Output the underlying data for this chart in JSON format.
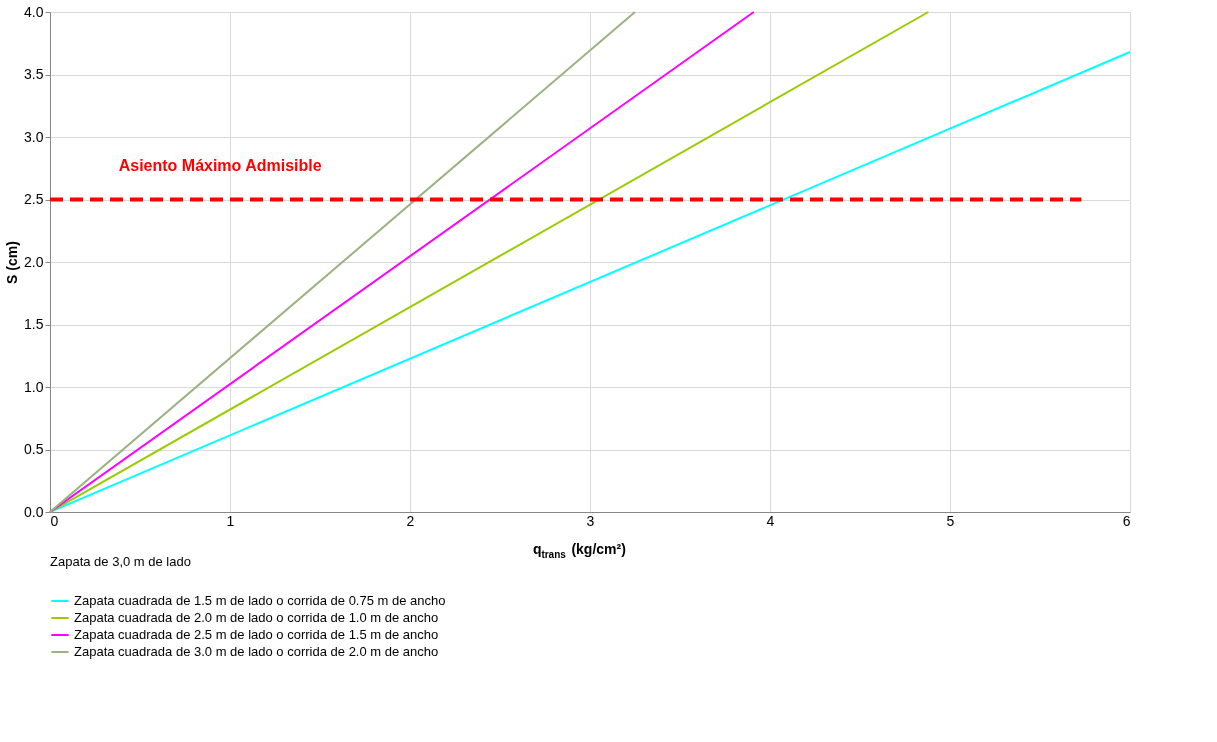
{
  "chart_data": {
    "type": "line",
    "xlabel": "q$_{trans}$ (kg/cm²)",
    "ylabel": "S (cm)",
    "legend_title": "Zapata de 3,0 m de lado",
    "xlim": [
      0,
      6
    ],
    "xticks": [
      0,
      1,
      2,
      3,
      4,
      5,
      6
    ],
    "ylim": [
      0,
      4.0
    ],
    "yticks": [
      {
        "value": 0,
        "label": "0.0"
      },
      0.5,
      {
        "value": 1,
        "label": "1.0"
      },
      1.5,
      {
        "value": 2,
        "label": "2.0"
      },
      2.5,
      {
        "value": 3,
        "label": "3.0"
      },
      3.5,
      {
        "value": 4,
        "label": "4.0"
      }
    ],
    "grid": true,
    "legend": "bottom",
    "marker": "none",
    "line_style": "solid",
    "series": [
      {
        "name": "Zapata cuadrada de 1.5 m de lado o corrida de 0.75 m de ancho",
        "color": "#00ffff",
        "x": [
          0,
          6
        ],
        "values": [
          0,
          3.68
        ]
      },
      {
        "name": "Zapata cuadrada de 2.0 m de lado o corrida de 1.0 m de ancho",
        "color": "#99cc00",
        "x": [
          0,
          4.88
        ],
        "values": [
          0,
          4.0
        ]
      },
      {
        "name": "Zapata cuadrada de 2.5 m de lado o corrida de 1.5 m de ancho",
        "color": "#ff00ff",
        "x": [
          0,
          3.91
        ],
        "values": [
          0,
          4.0
        ]
      },
      {
        "name": "Zapata cuadrada de 3.0 m de lado o corrida de 2.0 m de ancho",
        "color": "#99b380",
        "x": [
          0,
          3.25
        ],
        "values": [
          0,
          4.0
        ]
      },
      {
        "name": "Asiento Máximo Admisible",
        "color": "#ff0000",
        "line_style": "dashed",
        "x": [
          0,
          5.73
        ],
        "values": [
          2.5,
          2.5
        ]
      }
    ]
  }
}
